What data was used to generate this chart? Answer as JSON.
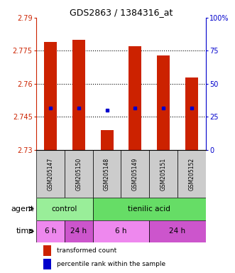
{
  "title": "GDS2863 / 1384316_at",
  "samples": [
    "GSM205147",
    "GSM205150",
    "GSM205148",
    "GSM205149",
    "GSM205151",
    "GSM205152"
  ],
  "bar_values": [
    2.779,
    2.78,
    2.739,
    2.777,
    2.773,
    2.763
  ],
  "bar_bottom": 2.73,
  "percentile_values": [
    2.749,
    2.749,
    2.748,
    2.749,
    2.749,
    2.749
  ],
  "ylim_left": [
    2.73,
    2.79
  ],
  "ylim_right": [
    0,
    100
  ],
  "yticks_left": [
    2.73,
    2.745,
    2.76,
    2.775,
    2.79
  ],
  "ytick_labels_left": [
    "2.73",
    "2.745",
    "2.76",
    "2.775",
    "2.79"
  ],
  "yticks_right": [
    0,
    25,
    50,
    75,
    100
  ],
  "ytick_labels_right": [
    "0",
    "25",
    "50",
    "75",
    "100%"
  ],
  "hlines": [
    2.745,
    2.76,
    2.775
  ],
  "bar_color": "#CC2200",
  "dot_color": "#0000CC",
  "agent_groups": [
    {
      "label": "control",
      "start": 0,
      "end": 2,
      "color": "#99EE99"
    },
    {
      "label": "tienilic acid",
      "start": 2,
      "end": 6,
      "color": "#66DD66"
    }
  ],
  "time_groups": [
    {
      "label": "6 h",
      "start": 0,
      "end": 1,
      "color": "#EE88EE"
    },
    {
      "label": "24 h",
      "start": 1,
      "end": 2,
      "color": "#CC55CC"
    },
    {
      "label": "6 h",
      "start": 2,
      "end": 4,
      "color": "#EE88EE"
    },
    {
      "label": "24 h",
      "start": 4,
      "end": 6,
      "color": "#CC55CC"
    }
  ],
  "bar_width": 0.45,
  "agent_label": "agent",
  "time_label": "time",
  "legend_bar_label": "transformed count",
  "legend_dot_label": "percentile rank within the sample",
  "background_color": "#FFFFFF",
  "plot_bg_color": "#FFFFFF",
  "tick_color_left": "#CC2200",
  "tick_color_right": "#0000CC",
  "sample_bg_color": "#CCCCCC"
}
